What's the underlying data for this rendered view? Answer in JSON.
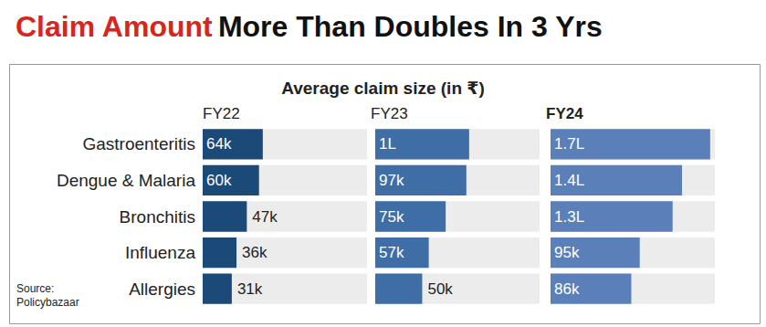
{
  "chart_data": {
    "type": "bar",
    "orientation": "horizontal",
    "title": [
      "Claim Amount",
      "More Than Doubles In 3 Yrs"
    ],
    "subtitle": "Average claim size (in ₹)",
    "source": "Source:\nPolicybazaar",
    "categories": [
      "Gastroenteritis",
      "Dengue & Malaria",
      "Bronchitis",
      "Influenza",
      "Allergies"
    ],
    "series": [
      {
        "name": "FY22",
        "color": "#1c4a78",
        "values": [
          64000,
          60000,
          47000,
          36000,
          31000
        ],
        "value_labels": [
          "64k",
          "60k",
          "47k",
          "36k",
          "31k"
        ]
      },
      {
        "name": "FY23",
        "color": "#3f6da6",
        "values": [
          100000,
          97000,
          75000,
          57000,
          50000
        ],
        "value_labels": [
          "1L",
          "97k",
          "75k",
          "57k",
          "50k"
        ]
      },
      {
        "name": "FY24",
        "color": "#5b80b9",
        "values": [
          170000,
          140000,
          130000,
          95000,
          86000
        ],
        "value_labels": [
          "1.7L",
          "1.4L",
          "1.3L",
          "95k",
          "86k"
        ]
      }
    ],
    "xlim": [
      0,
      175000
    ],
    "data_labels": true,
    "tick_labels": "y",
    "grid": false
  }
}
